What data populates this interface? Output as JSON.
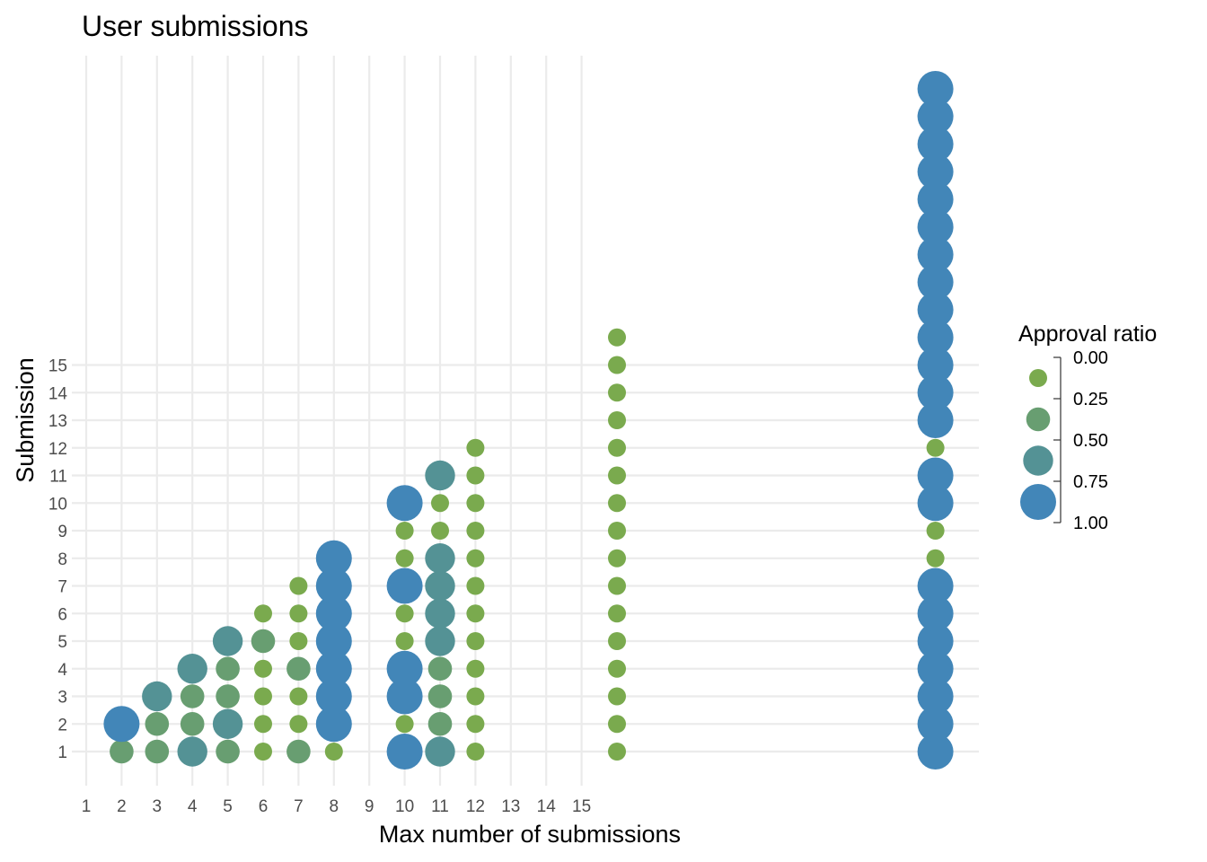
{
  "chart_data": {
    "type": "scatter",
    "title": "User submissions",
    "xlabel": "Max number of submissions",
    "ylabel": "Submission",
    "x_ticks": [
      "1",
      "2",
      "3",
      "4",
      "5",
      "6",
      "7",
      "8",
      "9",
      "10",
      "11",
      "12",
      "13",
      "14",
      "15"
    ],
    "y_ticks": [
      "1",
      "2",
      "3",
      "4",
      "5",
      "6",
      "7",
      "8",
      "9",
      "10",
      "11",
      "12",
      "13",
      "14",
      "15"
    ],
    "grid": true,
    "legend": {
      "title": "Approval ratio",
      "position": "right",
      "breaks": [
        "0.00",
        "0.25",
        "0.50",
        "0.75",
        "1.00"
      ],
      "keys": [
        0.0,
        0.33,
        0.67,
        1.0
      ]
    },
    "colors": {
      "low": "#7aaa4e",
      "high": "#4286b8"
    },
    "columns": [
      {
        "x": 2,
        "ratios": [
          0.33,
          1.0
        ]
      },
      {
        "x": 3,
        "ratios": [
          0.33,
          0.33,
          0.67
        ]
      },
      {
        "x": 4,
        "ratios": [
          0.67,
          0.33,
          0.33,
          0.67
        ]
      },
      {
        "x": 5,
        "ratios": [
          0.33,
          0.67,
          0.33,
          0.33,
          0.67
        ]
      },
      {
        "x": 6,
        "ratios": [
          0,
          0,
          0,
          0,
          0.33,
          0
        ]
      },
      {
        "x": 7,
        "ratios": [
          0.33,
          0,
          0,
          0.33,
          0,
          0,
          0
        ]
      },
      {
        "x": 8,
        "ratios": [
          0,
          1,
          1,
          1,
          1,
          1,
          1,
          1
        ]
      },
      {
        "x": 10,
        "ratios": [
          1,
          0,
          1,
          1,
          0,
          0,
          1,
          0,
          0,
          1
        ]
      },
      {
        "x": 11,
        "ratios": [
          0.67,
          0.33,
          0.33,
          0.33,
          0.67,
          0.67,
          0.67,
          0.67,
          0,
          0,
          0.67
        ]
      },
      {
        "x": 12,
        "ratios": [
          0,
          0,
          0,
          0,
          0,
          0,
          0,
          0,
          0,
          0,
          0,
          0
        ]
      },
      {
        "x": 16,
        "ratios": [
          0,
          0,
          0,
          0,
          0,
          0,
          0,
          0,
          0,
          0,
          0,
          0,
          0,
          0,
          0,
          0
        ]
      },
      {
        "x": 25,
        "ratios": [
          1,
          1,
          1,
          1,
          1,
          1,
          1,
          0,
          0,
          1,
          1,
          0,
          1,
          1,
          1,
          1,
          1,
          1,
          1,
          1,
          1,
          1,
          1,
          1,
          1
        ]
      }
    ]
  }
}
